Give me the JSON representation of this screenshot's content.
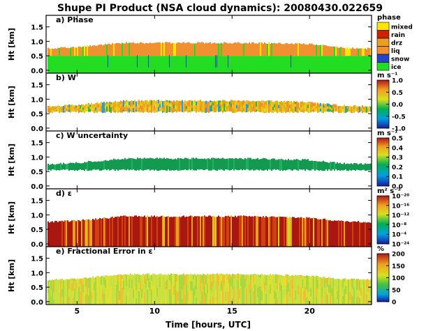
{
  "figure_title": "Shupe PI Product (NSA cloud dynamics): 20080430.022659",
  "x_axis": {
    "label": "Time [hours, UTC]",
    "range": [
      3,
      24
    ],
    "ticks": [
      {
        "v": 5,
        "t": "5"
      },
      {
        "v": 10,
        "t": "10"
      },
      {
        "v": 15,
        "t": "15"
      },
      {
        "v": 20,
        "t": "20"
      }
    ]
  },
  "chart_data": [
    {
      "type": "heatmap",
      "panel": "a) Phase",
      "ylabel": "Ht [km]",
      "ylim": [
        -0.1,
        1.9
      ],
      "yticks": [
        "0.0",
        "0.5",
        "1.0",
        "1.5"
      ],
      "xlim": [
        3,
        24
      ],
      "cloud_base_km": 0.55,
      "cloud_top_km": [
        [
          3,
          0.75
        ],
        [
          5,
          0.8
        ],
        [
          8,
          0.95
        ],
        [
          12,
          0.95
        ],
        [
          16,
          0.95
        ],
        [
          20,
          0.9
        ],
        [
          22,
          0.78
        ],
        [
          24,
          0.75
        ]
      ],
      "colorbar": {
        "title": "phase",
        "labels": [
          "mixed",
          "rain",
          "drz",
          "liq",
          "snow",
          "ice"
        ],
        "colors": [
          "#ffe600",
          "#cc2200",
          "#e8a020",
          "#f09030",
          "#2244cc",
          "#22dd22"
        ]
      }
    },
    {
      "type": "heatmap",
      "panel": "b) W",
      "ylabel": "Ht [km]",
      "ylim": [
        -0.1,
        1.9
      ],
      "yticks": [
        "0.0",
        "0.5",
        "1.0",
        "1.5"
      ],
      "xlim": [
        3,
        24
      ],
      "cloud_base_km": 0.55,
      "cloud_top_km": [
        [
          3,
          0.75
        ],
        [
          5,
          0.8
        ],
        [
          8,
          0.95
        ],
        [
          12,
          0.95
        ],
        [
          16,
          0.95
        ],
        [
          20,
          0.9
        ],
        [
          22,
          0.78
        ],
        [
          24,
          0.75
        ]
      ],
      "colorbar": {
        "title": "m s⁻¹",
        "ticks": [
          "1.0",
          "0.5",
          "0.0",
          "-0.5",
          "-1.0"
        ],
        "range": [
          -1.0,
          1.0
        ]
      }
    },
    {
      "type": "heatmap",
      "panel": "c) W uncertainty",
      "ylabel": "Ht [km]",
      "ylim": [
        -0.1,
        1.9
      ],
      "yticks": [
        "0.0",
        "0.5",
        "1.0",
        "1.5"
      ],
      "xlim": [
        3,
        24
      ],
      "cloud_base_km": 0.55,
      "cloud_top_km": [
        [
          3,
          0.75
        ],
        [
          5,
          0.8
        ],
        [
          8,
          0.95
        ],
        [
          12,
          0.95
        ],
        [
          16,
          0.95
        ],
        [
          20,
          0.9
        ],
        [
          22,
          0.78
        ],
        [
          24,
          0.75
        ]
      ],
      "colorbar": {
        "title": "m s⁻¹",
        "ticks": [
          "0.5",
          "0.4",
          "0.3",
          "0.2",
          "0.1",
          "0.0"
        ],
        "range": [
          0.0,
          0.5
        ]
      }
    },
    {
      "type": "heatmap",
      "panel": "d) ε",
      "ylabel": "Ht [km]",
      "ylim": [
        -0.1,
        1.9
      ],
      "yticks": [
        "0.0",
        "0.5",
        "1.0",
        "1.5"
      ],
      "xlim": [
        3,
        24
      ],
      "cloud_base_km": 0.0,
      "cloud_top_km": [
        [
          3,
          0.75
        ],
        [
          5,
          0.8
        ],
        [
          8,
          0.95
        ],
        [
          12,
          0.95
        ],
        [
          16,
          0.95
        ],
        [
          20,
          0.9
        ],
        [
          22,
          0.78
        ],
        [
          24,
          0.75
        ]
      ],
      "colorbar": {
        "title": "m² s⁻³",
        "ticks": [
          "10⁻²⁰",
          "10⁻¹⁶",
          "10⁻¹²",
          "10⁻⁸",
          "10⁻⁴",
          "10⁻²⁴"
        ]
      }
    },
    {
      "type": "heatmap",
      "panel": "e) Fractional Error in ε",
      "ylabel": "Ht [km]",
      "ylim": [
        -0.1,
        1.9
      ],
      "yticks": [
        "0.0",
        "0.5",
        "1.0",
        "1.5"
      ],
      "xlim": [
        3,
        24
      ],
      "cloud_base_km": 0.0,
      "cloud_top_km": [
        [
          3,
          0.75
        ],
        [
          5,
          0.8
        ],
        [
          8,
          0.95
        ],
        [
          12,
          0.95
        ],
        [
          16,
          0.95
        ],
        [
          20,
          0.9
        ],
        [
          22,
          0.78
        ],
        [
          24,
          0.75
        ]
      ],
      "colorbar": {
        "title": "%",
        "ticks": [
          "200",
          "150",
          "100",
          "50",
          "0"
        ],
        "range": [
          0,
          200
        ]
      }
    }
  ]
}
